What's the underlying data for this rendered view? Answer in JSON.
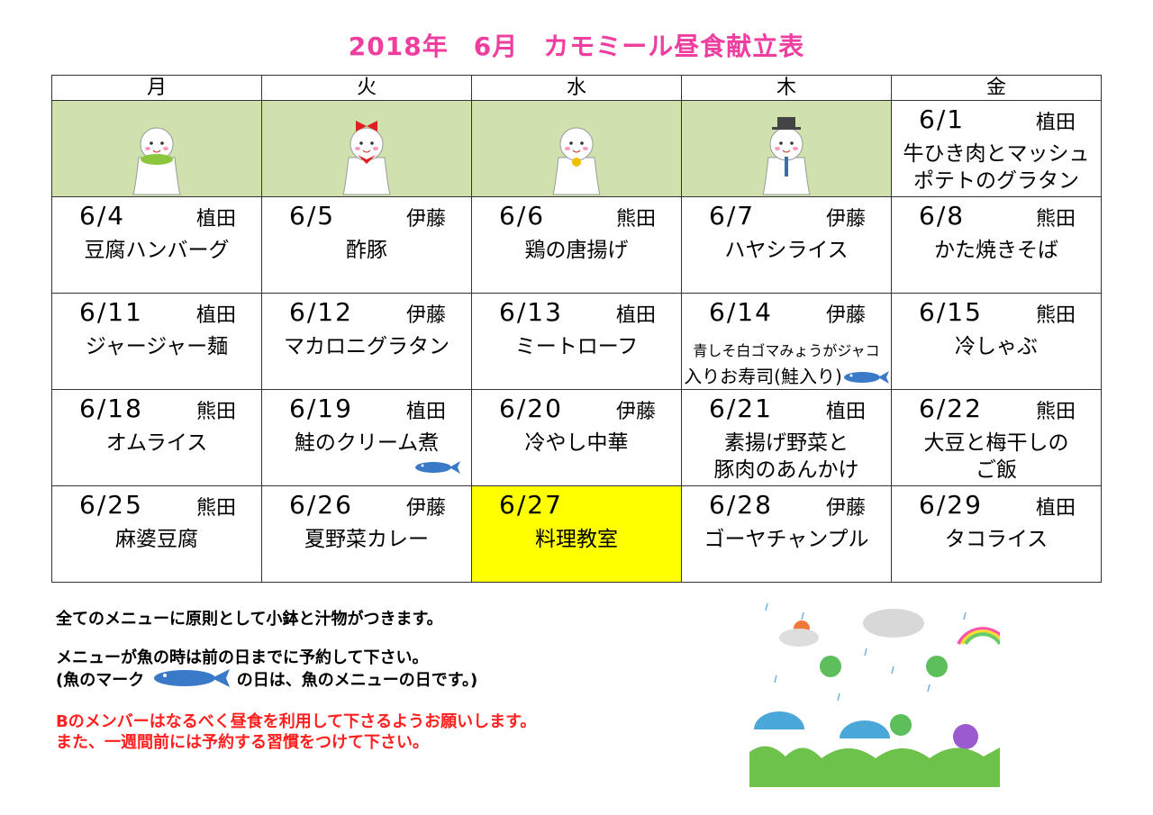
{
  "title": {
    "year": "2018年",
    "month": "6月",
    "name": "カモミール昼食献立表"
  },
  "days": [
    "月",
    "火",
    "水",
    "木",
    "金"
  ],
  "first_row": {
    "decorations": [
      "teru-teru-bozu-green-bow",
      "teru-teru-bozu-red-ribbon",
      "teru-teru-bozu-bell",
      "teru-teru-bozu-top-hat"
    ],
    "friday": {
      "date": "6/1",
      "person": "植田",
      "menu": [
        "牛ひき肉とマッシュ",
        "ポテトのグラタン"
      ]
    }
  },
  "weeks": [
    [
      {
        "date": "6/4",
        "person": "植田",
        "menu": [
          "豆腐ハンバーグ"
        ]
      },
      {
        "date": "6/5",
        "person": "伊藤",
        "menu": [
          "酢豚"
        ]
      },
      {
        "date": "6/6",
        "person": "熊田",
        "menu": [
          "鶏の唐揚げ"
        ]
      },
      {
        "date": "6/7",
        "person": "伊藤",
        "menu": [
          "ハヤシライス"
        ]
      },
      {
        "date": "6/8",
        "person": "熊田",
        "menu": [
          "かた焼きそば"
        ]
      }
    ],
    [
      {
        "date": "6/11",
        "person": "植田",
        "menu": [
          "ジャージャー麺"
        ]
      },
      {
        "date": "6/12",
        "person": "伊藤",
        "menu": [
          "マカロニグラタン"
        ]
      },
      {
        "date": "6/13",
        "person": "植田",
        "menu": [
          "ミートローフ"
        ]
      },
      {
        "date": "6/14",
        "person": "伊藤",
        "menu": [
          "青しそ白ゴマみょうがジャコ",
          "入りお寿司(鮭入り)"
        ],
        "fish": true,
        "small": true
      },
      {
        "date": "6/15",
        "person": "熊田",
        "menu": [
          "冷しゃぶ"
        ]
      }
    ],
    [
      {
        "date": "6/18",
        "person": "熊田",
        "menu": [
          "オムライス"
        ]
      },
      {
        "date": "6/19",
        "person": "植田",
        "menu": [
          "鮭のクリーム煮"
        ],
        "fish": true
      },
      {
        "date": "6/20",
        "person": "伊藤",
        "menu": [
          "冷やし中華"
        ]
      },
      {
        "date": "6/21",
        "person": "植田",
        "menu": [
          "素揚げ野菜と",
          "豚肉のあんかけ"
        ]
      },
      {
        "date": "6/22",
        "person": "熊田",
        "menu": [
          "大豆と梅干しの",
          "ご飯"
        ]
      }
    ],
    [
      {
        "date": "6/25",
        "person": "熊田",
        "menu": [
          "麻婆豆腐"
        ]
      },
      {
        "date": "6/26",
        "person": "伊藤",
        "menu": [
          "夏野菜カレー"
        ]
      },
      {
        "date": "6/27",
        "person": "",
        "menu": [
          "料理教室"
        ],
        "highlight": true
      },
      {
        "date": "6/28",
        "person": "伊藤",
        "menu": [
          "ゴーヤチャンプル"
        ]
      },
      {
        "date": "6/29",
        "person": "植田",
        "menu": [
          "タコライス"
        ]
      }
    ]
  ],
  "notes": {
    "line1": "全てのメニューに原則として小鉢と汁物がつきます。",
    "line2": "メニューが魚の時は前の日までに予約して下さい。",
    "line3a": "(魚のマーク",
    "line3b": "の日は、魚のメニューの日です。)",
    "red1": "Bのメンバーはなるべく昼食を利用して下さるようお願いします。",
    "red2": "また、一週間前には予約する習慣をつけて下さい。"
  },
  "colors": {
    "title": "#ee3fa0",
    "deco_bg": "#cfe2ad",
    "highlight": "#ffff00",
    "red_note": "#ff2020",
    "fish": "#3a78c8"
  },
  "illustration": "rainy-season-frogs-umbrellas-hydrangea"
}
